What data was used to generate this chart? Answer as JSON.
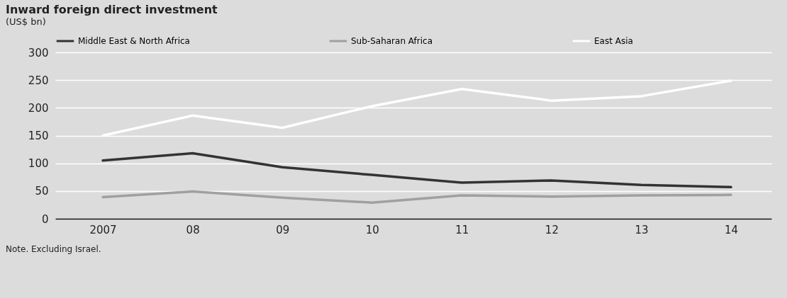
{
  "chart_data": {
    "type": "line",
    "title": "Inward foreign direct investment",
    "ylabel": "(US$ bn)",
    "categories": [
      "2007",
      "08",
      "09",
      "10",
      "11",
      "12",
      "13",
      "14"
    ],
    "series": [
      {
        "name": "Middle East & North Africa",
        "color": "#333333",
        "values": [
          105,
          118,
          93,
          79,
          65,
          69,
          61,
          57
        ]
      },
      {
        "name": "Sub-Saharan Africa",
        "color": "#a0a0a0",
        "values": [
          39,
          49,
          38,
          29,
          42,
          40,
          42,
          43
        ]
      },
      {
        "name": "East Asia",
        "color": "#ffffff",
        "values": [
          150,
          186,
          164,
          203,
          234,
          213,
          221,
          249
        ]
      }
    ],
    "ylim": [
      0,
      300
    ],
    "yticks": [
      0,
      50,
      100,
      150,
      200,
      250,
      300
    ],
    "grid": "y",
    "legend": "top",
    "line_style": "solid",
    "annotations": [
      "Note. Excluding Israel."
    ]
  }
}
